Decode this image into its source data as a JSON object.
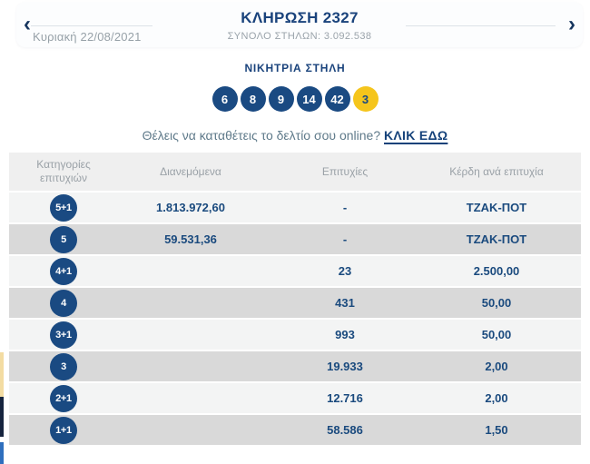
{
  "nav": {
    "prev_icon": "‹",
    "next_icon": "›",
    "date": "Κυριακή 22/08/2021",
    "title": "ΚΛΗΡΩΣΗ 2327",
    "subtitle": "ΣΥΝΟΛΟ ΣΤΗΛΩΝ: 3.092.538"
  },
  "winning": {
    "heading": "ΝΙΚΗΤΡΙΑ ΣΤΗΛΗ",
    "numbers": [
      "6",
      "8",
      "9",
      "14",
      "42"
    ],
    "bonus_number": "3",
    "cta_text": "Θέλεις να καταθέτεις το δελτίο σου online?",
    "cta_link": "ΚΛΙΚ ΕΔΩ"
  },
  "table": {
    "headers": {
      "category": "Κατηγορίες επιτυχιών",
      "distributed": "Διανεμόμενα",
      "winners": "Επιτυχίες",
      "prize": "Κέρδη ανά επιτυχία"
    },
    "rows": [
      {
        "category": "5+1",
        "distributed": "1.813.972,60",
        "winners": "-",
        "prize": "ΤΖΑΚ-ΠΟΤ"
      },
      {
        "category": "5",
        "distributed": "59.531,36",
        "winners": "-",
        "prize": "ΤΖΑΚ-ΠΟΤ"
      },
      {
        "category": "4+1",
        "distributed": "",
        "winners": "23",
        "prize": "2.500,00"
      },
      {
        "category": "4",
        "distributed": "",
        "winners": "431",
        "prize": "50,00"
      },
      {
        "category": "3+1",
        "distributed": "",
        "winners": "993",
        "prize": "50,00"
      },
      {
        "category": "3",
        "distributed": "",
        "winners": "19.933",
        "prize": "2,00"
      },
      {
        "category": "2+1",
        "distributed": "",
        "winners": "12.716",
        "prize": "2,00"
      },
      {
        "category": "1+1",
        "distributed": "",
        "winners": "58.586",
        "prize": "1,50"
      }
    ]
  },
  "colors": {
    "brand_navy": "#1a4a82",
    "bonus_yellow": "#f5c51c",
    "row_light": "#f3f4f4",
    "row_dark": "#d9d9d9",
    "header_bg": "#efefef",
    "muted_text": "#9aa1a7"
  }
}
